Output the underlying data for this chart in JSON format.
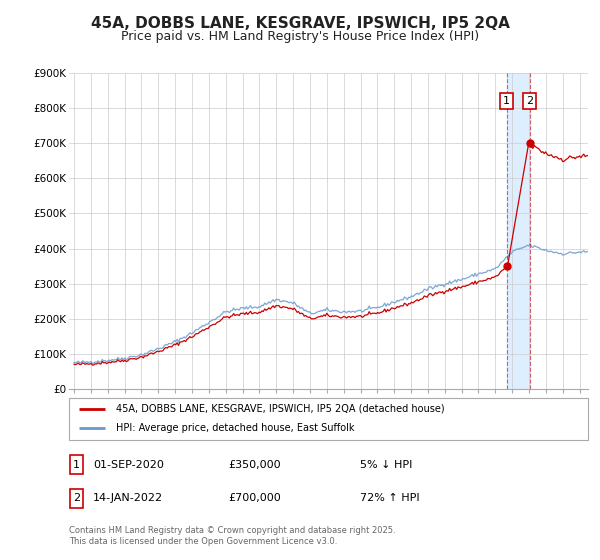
{
  "title": "45A, DOBBS LANE, KESGRAVE, IPSWICH, IP5 2QA",
  "subtitle": "Price paid vs. HM Land Registry's House Price Index (HPI)",
  "ylim": [
    0,
    900000
  ],
  "yticks": [
    0,
    100000,
    200000,
    300000,
    400000,
    500000,
    600000,
    700000,
    800000,
    900000
  ],
  "ytick_labels": [
    "£0",
    "£100K",
    "£200K",
    "£300K",
    "£400K",
    "£500K",
    "£600K",
    "£700K",
    "£800K",
    "£900K"
  ],
  "xlim_start": 1994.7,
  "xlim_end": 2025.5,
  "background_color": "#ffffff",
  "plot_bg_color": "#ffffff",
  "grid_color": "#cccccc",
  "title_fontsize": 11,
  "subtitle_fontsize": 9,
  "legend1_label": "45A, DOBBS LANE, KESGRAVE, IPSWICH, IP5 2QA (detached house)",
  "legend2_label": "HPI: Average price, detached house, East Suffolk",
  "red_line_color": "#cc0000",
  "blue_line_color": "#6699cc",
  "shaded_region_color": "#ddeeff",
  "marker1_date": 2020.67,
  "marker2_date": 2022.04,
  "sale1_value": 350000,
  "sale2_value": 700000,
  "table_row1": [
    "1",
    "01-SEP-2020",
    "£350,000",
    "5% ↓ HPI"
  ],
  "table_row2": [
    "2",
    "14-JAN-2022",
    "£700,000",
    "72% ↑ HPI"
  ],
  "footer_text": "Contains HM Land Registry data © Crown copyright and database right 2025.\nThis data is licensed under the Open Government Licence v3.0."
}
